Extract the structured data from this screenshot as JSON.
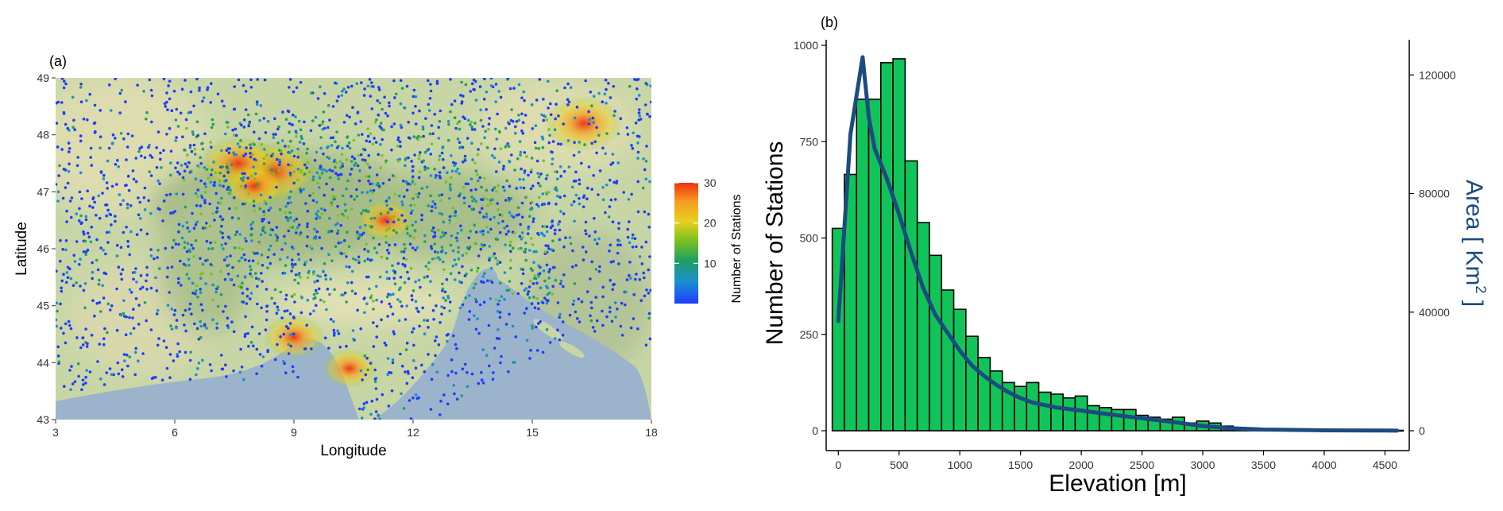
{
  "chart_data": [
    {
      "type": "scatter",
      "panel_label": "(a)",
      "title": "",
      "xlabel": "Longitude",
      "ylabel": "Latitude",
      "xlim": [
        3,
        18
      ],
      "ylim": [
        43,
        49
      ],
      "xticks": [
        "3",
        "6",
        "9",
        "12",
        "15",
        "18"
      ],
      "yticks": [
        "43",
        "44",
        "45",
        "46",
        "47",
        "48",
        "49"
      ],
      "colorbar": {
        "label": "Number of Stations",
        "range": [
          0,
          30
        ],
        "ticks": [
          "10",
          "20",
          "30"
        ],
        "tick_values": [
          10,
          20,
          30
        ],
        "colors": [
          "#1e3cff",
          "#1a8fd0",
          "#20a060",
          "#7cc020",
          "#e8d020",
          "#f59a20",
          "#f03010"
        ]
      },
      "basemap_colors": {
        "sea": "#9bb4cc",
        "land": "#c8d6a6",
        "mountain": "#a9bf8a",
        "plain": "#dcdcae"
      },
      "density_hotspots": [
        {
          "lon": 8.5,
          "lat": 47.35,
          "count": 28
        },
        {
          "lon": 7.6,
          "lat": 47.5,
          "count": 24
        },
        {
          "lon": 16.3,
          "lat": 48.2,
          "count": 25
        },
        {
          "lon": 9.0,
          "lat": 44.45,
          "count": 18
        },
        {
          "lon": 11.3,
          "lat": 46.5,
          "count": 16
        },
        {
          "lon": 10.4,
          "lat": 43.9,
          "count": 15
        },
        {
          "lon": 8.0,
          "lat": 47.1,
          "count": 18
        }
      ]
    },
    {
      "type": "bar",
      "panel_label": "(b)",
      "title": "",
      "xlabel": "Elevation [m]",
      "ylabel": "Number of Stations",
      "y2label": "Area [ Km",
      "y2label_sup": "2",
      "y2label_end": " ]",
      "xlim": [
        -100,
        4700
      ],
      "ylim": [
        0,
        1000
      ],
      "y2lim": [
        0,
        130000
      ],
      "xticks": [
        "0",
        "500",
        "1000",
        "1500",
        "2000",
        "2500",
        "3000",
        "3500",
        "4000",
        "4500"
      ],
      "xtick_values": [
        0,
        500,
        1000,
        1500,
        2000,
        2500,
        3000,
        3500,
        4000,
        4500
      ],
      "yticks": [
        "0",
        "250",
        "500",
        "750",
        "1000"
      ],
      "ytick_values": [
        0,
        250,
        500,
        750,
        1000
      ],
      "y2ticks": [
        "0",
        "40000",
        "80000",
        "120000"
      ],
      "y2tick_values": [
        0,
        40000,
        80000,
        120000
      ],
      "bin_width": 100,
      "bin_centers": [
        0,
        100,
        200,
        300,
        400,
        500,
        600,
        700,
        800,
        900,
        1000,
        1100,
        1200,
        1300,
        1400,
        1500,
        1600,
        1700,
        1800,
        1900,
        2000,
        2100,
        2200,
        2300,
        2400,
        2500,
        2600,
        2700,
        2800,
        2900,
        3000,
        3100,
        3200,
        3300,
        3400,
        3500,
        3600,
        3700,
        3800,
        3900,
        4000,
        4100,
        4200,
        4300,
        4400,
        4500,
        4600
      ],
      "values": [
        525,
        665,
        860,
        860,
        955,
        965,
        700,
        540,
        455,
        365,
        315,
        245,
        190,
        155,
        125,
        115,
        125,
        100,
        95,
        85,
        90,
        65,
        60,
        55,
        55,
        40,
        35,
        30,
        35,
        20,
        25,
        20,
        12,
        8,
        5,
        3,
        2,
        2,
        1,
        1,
        1,
        1,
        1,
        1,
        1,
        1,
        1
      ],
      "bar_color": "#11c45a",
      "line_color": "#1c4b80",
      "series": [
        {
          "name": "",
          "axis": "right",
          "x": [
            0,
            100,
            200,
            250,
            300,
            400,
            500,
            600,
            700,
            800,
            900,
            1000,
            1100,
            1200,
            1300,
            1400,
            1500,
            1600,
            1800,
            2000,
            2200,
            2500,
            2800,
            3000,
            3200,
            3500,
            4000,
            4500,
            4600
          ],
          "values": [
            37000,
            100000,
            126000,
            106000,
            95000,
            85000,
            73000,
            60000,
            48000,
            39000,
            33000,
            27000,
            22000,
            18500,
            15500,
            13000,
            11000,
            9500,
            7800,
            6800,
            5700,
            4200,
            2700,
            1600,
            900,
            400,
            150,
            50,
            30
          ]
        }
      ]
    }
  ]
}
